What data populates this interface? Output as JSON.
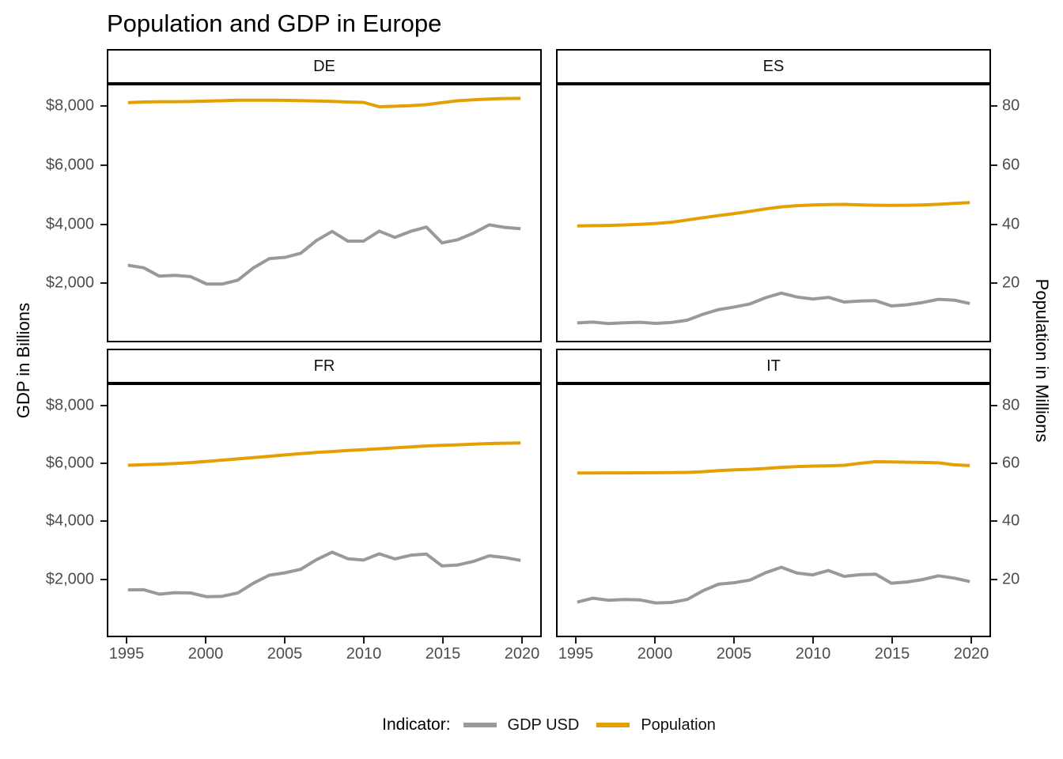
{
  "chart_data": {
    "type": "line",
    "title": "Population and GDP in Europe",
    "facet_labels": [
      "DE",
      "ES",
      "FR",
      "IT"
    ],
    "x_axis": {
      "tick_labels": [
        "1995",
        "2000",
        "2005",
        "2010",
        "2015",
        "2020"
      ],
      "tick_values": [
        1995,
        2000,
        2005,
        2010,
        2015,
        2020
      ],
      "domain": [
        1993.75,
        2021.25
      ]
    },
    "y_left_axis": {
      "label": "GDP in Billions",
      "tick_labels": [
        "$8,000",
        "$6,000",
        "$4,000",
        "$2,000"
      ],
      "tick_values": [
        8000,
        6000,
        4000,
        2000
      ],
      "domain": [
        0,
        8760
      ]
    },
    "y_right_axis": {
      "label": "Population in Millions",
      "tick_labels": [
        "80",
        "60",
        "40",
        "20"
      ],
      "tick_values": [
        80,
        60,
        40,
        20
      ],
      "scale_factor_to_left_axis": 100
    },
    "legend": {
      "title": "Indicator:",
      "entries": [
        {
          "label": "GDP USD",
          "color": "#999999"
        },
        {
          "label": "Population",
          "color": "#E69F00"
        }
      ]
    },
    "colors": {
      "gdp_line": "#999999",
      "population_line": "#E69F00",
      "axis_text": "#4d4d4d",
      "panel_border": "#000000"
    },
    "years": [
      1995,
      1996,
      1997,
      1998,
      1999,
      2000,
      2001,
      2002,
      2003,
      2004,
      2005,
      2006,
      2007,
      2008,
      2009,
      2010,
      2011,
      2012,
      2013,
      2014,
      2015,
      2016,
      2017,
      2018,
      2019,
      2020
    ],
    "facets": [
      {
        "code": "DE",
        "gdp_usd_billions": [
          2591,
          2503,
          2216,
          2244,
          2200,
          1948,
          1945,
          2079,
          2506,
          2819,
          2861,
          3002,
          3440,
          3752,
          3418,
          3417,
          3761,
          3544,
          3753,
          3899,
          3357,
          3467,
          3690,
          3977,
          3889,
          3846
        ],
        "population_millions": [
          81.68,
          81.91,
          82.01,
          82.02,
          82.07,
          82.21,
          82.35,
          82.49,
          82.53,
          82.52,
          82.47,
          82.38,
          82.27,
          82.11,
          81.9,
          81.78,
          80.27,
          80.43,
          80.65,
          80.98,
          81.69,
          82.35,
          82.66,
          82.91,
          83.09,
          83.16
        ]
      },
      {
        "code": "ES",
        "gdp_usd_billions": [
          613,
          641,
          589,
          618,
          634,
          598,
          627,
          706,
          908,
          1069,
          1157,
          1264,
          1479,
          1635,
          1499,
          1431,
          1488,
          1330,
          1362,
          1376,
          1196,
          1233,
          1313,
          1421,
          1394,
          1277
        ],
        "population_millions": [
          39.39,
          39.48,
          39.58,
          39.72,
          39.93,
          40.26,
          40.66,
          41.42,
          42.19,
          42.92,
          43.65,
          44.4,
          45.23,
          45.95,
          46.36,
          46.56,
          46.74,
          46.77,
          46.62,
          46.48,
          46.44,
          46.48,
          46.59,
          46.8,
          47.13,
          47.37
        ]
      },
      {
        "code": "FR",
        "gdp_usd_billions": [
          1601,
          1605,
          1452,
          1503,
          1493,
          1362,
          1377,
          1494,
          1840,
          2115,
          2196,
          2320,
          2657,
          2918,
          2690,
          2642,
          2861,
          2683,
          2811,
          2852,
          2438,
          2471,
          2595,
          2790,
          2729,
          2630
        ],
        "population_millions": [
          59.54,
          59.75,
          59.95,
          60.15,
          60.5,
          60.91,
          61.36,
          61.8,
          62.24,
          62.7,
          63.18,
          63.62,
          64.02,
          64.37,
          64.71,
          65.03,
          65.34,
          65.66,
          66.0,
          66.31,
          66.55,
          66.72,
          66.92,
          67.16,
          67.25,
          67.38
        ]
      },
      {
        "code": "IT",
        "gdp_usd_billions": [
          1171,
          1309,
          1239,
          1266,
          1248,
          1144,
          1162,
          1266,
          1570,
          1799,
          1852,
          1943,
          2203,
          2391,
          2185,
          2125,
          2276,
          2072,
          2130,
          2151,
          1836,
          1876,
          1961,
          2092,
          2011,
          1889
        ],
        "population_millions": [
          56.84,
          56.86,
          56.89,
          56.91,
          56.92,
          56.94,
          56.97,
          57.06,
          57.31,
          57.69,
          57.97,
          58.14,
          58.44,
          58.83,
          59.1,
          59.28,
          59.38,
          59.54,
          60.23,
          60.79,
          60.73,
          60.63,
          60.54,
          60.42,
          59.73,
          59.44
        ]
      }
    ]
  }
}
